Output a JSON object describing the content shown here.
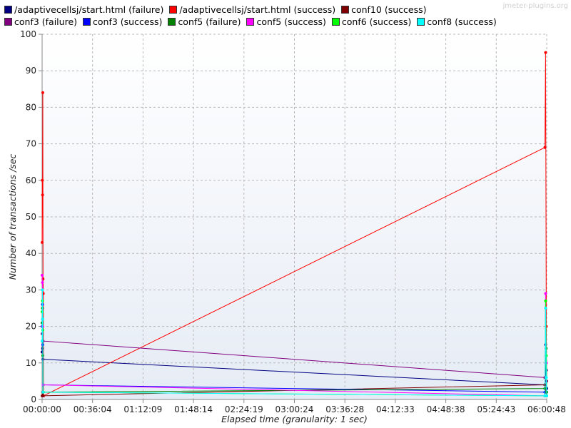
{
  "watermark": "jmeter-plugins.org",
  "chart_data": {
    "type": "line",
    "xlabel": "Elapsed time (granularity: 1 sec)",
    "ylabel": "Number of transactions /sec",
    "ylim": [
      0,
      100
    ],
    "yticks": [
      "0",
      "10",
      "20",
      "30",
      "40",
      "50",
      "60",
      "70",
      "80",
      "90",
      "100"
    ],
    "xlim": [
      "00:00:00",
      "06:00:48"
    ],
    "xticks": [
      "00:00:00",
      "00:36:04",
      "01:12:09",
      "01:48:14",
      "02:24:19",
      "03:00:24",
      "03:36:28",
      "04:12:33",
      "04:48:38",
      "05:24:43",
      "06:00:48"
    ],
    "grid": true,
    "legend_position": "top",
    "series": [
      {
        "name": "/adaptivecellsj/start.html (failure)",
        "color": "#000080",
        "points": [
          [
            "00:00:00",
            13
          ],
          [
            "00:00:12",
            16
          ],
          [
            "00:00:24",
            14
          ],
          [
            "00:00:36",
            11
          ],
          [
            "05:59:30",
            4
          ],
          [
            "06:00:00",
            15
          ],
          [
            "06:00:30",
            8
          ],
          [
            "06:00:48",
            3
          ]
        ]
      },
      {
        "name": "/adaptivecellsj/start.html (success)",
        "color": "#ff0000",
        "points": [
          [
            "00:00:00",
            43
          ],
          [
            "00:00:10",
            60
          ],
          [
            "00:00:20",
            56
          ],
          [
            "00:00:30",
            84
          ],
          [
            "00:00:40",
            33
          ],
          [
            "00:00:50",
            29
          ],
          [
            "00:01:00",
            1
          ],
          [
            "05:59:30",
            69
          ],
          [
            "06:00:00",
            95
          ],
          [
            "06:00:30",
            20
          ],
          [
            "06:00:48",
            1
          ]
        ]
      },
      {
        "name": "conf10 (success)",
        "color": "#800000",
        "points": [
          [
            "00:00:00",
            1
          ],
          [
            "00:00:20",
            2
          ],
          [
            "00:00:40",
            1
          ],
          [
            "05:59:30",
            4
          ],
          [
            "06:00:20",
            2
          ],
          [
            "06:00:48",
            1
          ]
        ]
      },
      {
        "name": "conf3 (failure)",
        "color": "#800080",
        "points": [
          [
            "00:00:00",
            18
          ],
          [
            "00:00:20",
            22
          ],
          [
            "00:00:40",
            16
          ],
          [
            "05:59:30",
            6
          ],
          [
            "06:00:20",
            12
          ],
          [
            "06:00:48",
            5
          ]
        ]
      },
      {
        "name": "conf3 (success)",
        "color": "#0000ff",
        "points": [
          [
            "00:00:00",
            20
          ],
          [
            "00:00:15",
            26
          ],
          [
            "00:00:30",
            15
          ],
          [
            "00:00:45",
            4
          ],
          [
            "05:59:30",
            2
          ],
          [
            "06:00:20",
            10
          ],
          [
            "06:00:48",
            1
          ]
        ]
      },
      {
        "name": "conf5 (failure)",
        "color": "#008000",
        "points": [
          [
            "00:00:00",
            21
          ],
          [
            "00:00:15",
            25
          ],
          [
            "00:00:30",
            12
          ],
          [
            "00:00:45",
            2
          ],
          [
            "05:59:30",
            3
          ],
          [
            "06:00:20",
            14
          ],
          [
            "06:00:48",
            2
          ]
        ]
      },
      {
        "name": "conf5 (success)",
        "color": "#ff00ff",
        "points": [
          [
            "00:00:00",
            34
          ],
          [
            "00:00:15",
            32
          ],
          [
            "00:00:30",
            20
          ],
          [
            "00:00:45",
            4
          ],
          [
            "05:59:30",
            1
          ],
          [
            "06:00:00",
            29
          ],
          [
            "06:00:30",
            10
          ],
          [
            "06:00:48",
            1
          ]
        ]
      },
      {
        "name": "conf6 (success)",
        "color": "#00ff00",
        "points": [
          [
            "00:00:00",
            24
          ],
          [
            "00:00:15",
            27
          ],
          [
            "00:00:30",
            19
          ],
          [
            "00:00:45",
            2
          ],
          [
            "05:59:30",
            1
          ],
          [
            "06:00:00",
            27
          ],
          [
            "06:00:30",
            12
          ],
          [
            "06:00:48",
            1
          ]
        ]
      },
      {
        "name": "conf8 (success)",
        "color": "#00ffff",
        "points": [
          [
            "00:00:00",
            16
          ],
          [
            "00:00:12",
            30
          ],
          [
            "00:00:24",
            22
          ],
          [
            "00:00:36",
            2
          ],
          [
            "05:59:30",
            1
          ],
          [
            "06:00:00",
            25
          ],
          [
            "06:00:30",
            6
          ],
          [
            "06:00:48",
            1
          ]
        ]
      }
    ]
  }
}
